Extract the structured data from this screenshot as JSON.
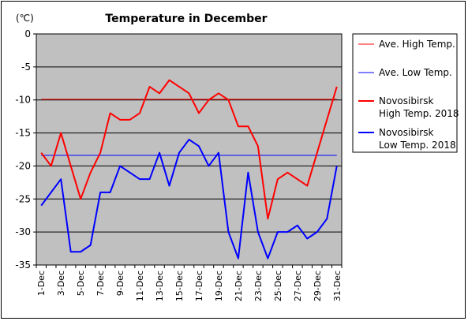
{
  "chart_data": {
    "type": "line",
    "title": "Temperature in December",
    "y_unit": "(℃)",
    "ylim": [
      -35,
      0
    ],
    "y_ticks": [
      0,
      -5,
      -10,
      -15,
      -20,
      -25,
      -30,
      -35
    ],
    "grid": "horizontal",
    "legend_position": "right",
    "background": "#c0c0c0",
    "categories": [
      "1-Dec",
      "2-Dec",
      "3-Dec",
      "4-Dec",
      "5-Dec",
      "6-Dec",
      "7-Dec",
      "8-Dec",
      "9-Dec",
      "10-Dec",
      "11-Dec",
      "12-Dec",
      "13-Dec",
      "14-Dec",
      "15-Dec",
      "16-Dec",
      "17-Dec",
      "18-Dec",
      "19-Dec",
      "20-Dec",
      "21-Dec",
      "22-Dec",
      "23-Dec",
      "24-Dec",
      "25-Dec",
      "26-Dec",
      "27-Dec",
      "28-Dec",
      "29-Dec",
      "30-Dec",
      "31-Dec"
    ],
    "x_tick_labels": [
      "1-Dec",
      "3-Dec",
      "5-Dec",
      "7-Dec",
      "9-Dec",
      "11-Dec",
      "13-Dec",
      "15-Dec",
      "17-Dec",
      "19-Dec",
      "21-Dec",
      "23-Dec",
      "25-Dec",
      "27-Dec",
      "29-Dec",
      "31-Dec"
    ],
    "series": [
      {
        "name": "Ave. High Temp.",
        "color": "#ff0000",
        "thin": true,
        "values": [
          -9.9,
          -9.9,
          -9.9,
          -9.9,
          -9.9,
          -9.9,
          -9.9,
          -9.9,
          -9.9,
          -9.9,
          -9.9,
          -9.9,
          -9.9,
          -9.9,
          -9.9,
          -9.9,
          -9.9,
          -9.9,
          -9.9,
          -9.9,
          -9.9,
          -9.9,
          -9.9,
          -9.9,
          -9.9,
          -9.9,
          -9.9,
          -9.9,
          -9.9,
          -9.9,
          -9.9
        ]
      },
      {
        "name": "Ave. Low Temp.",
        "color": "#0000ff",
        "thin": true,
        "values": [
          -18.4,
          -18.4,
          -18.4,
          -18.4,
          -18.4,
          -18.4,
          -18.4,
          -18.4,
          -18.4,
          -18.4,
          -18.4,
          -18.4,
          -18.4,
          -18.4,
          -18.4,
          -18.4,
          -18.4,
          -18.4,
          -18.4,
          -18.4,
          -18.4,
          -18.4,
          -18.4,
          -18.4,
          -18.4,
          -18.4,
          -18.4,
          -18.4,
          -18.4,
          -18.4,
          -18.4
        ]
      },
      {
        "name": "Novosibirsk High Temp. 2018",
        "name_lines": [
          "Novosibirsk",
          "High Temp. 2018"
        ],
        "color": "#ff0000",
        "thin": false,
        "values": [
          -18,
          -20,
          -15,
          -20,
          -25,
          -21,
          -18,
          -12,
          -13,
          -13,
          -12,
          -8,
          -9,
          -7,
          -8,
          -9,
          -12,
          -10,
          -9,
          -10,
          -14,
          -14,
          -17,
          -28,
          -22,
          -21,
          -22,
          -23,
          -18,
          -13,
          -8
        ]
      },
      {
        "name": "Novosibirsk Low Temp. 2018",
        "name_lines": [
          "Novosibirsk",
          "Low Temp. 2018"
        ],
        "color": "#0000ff",
        "thin": false,
        "values": [
          -26,
          -24,
          -22,
          -33,
          -33,
          -32,
          -24,
          -24,
          -20,
          -21,
          -22,
          -22,
          -18,
          -23,
          -18,
          -16,
          -17,
          -20,
          -18,
          -30,
          -34,
          -21,
          -30,
          -34,
          -30,
          -30,
          -29,
          -31,
          -30,
          -28,
          -20
        ]
      }
    ]
  }
}
